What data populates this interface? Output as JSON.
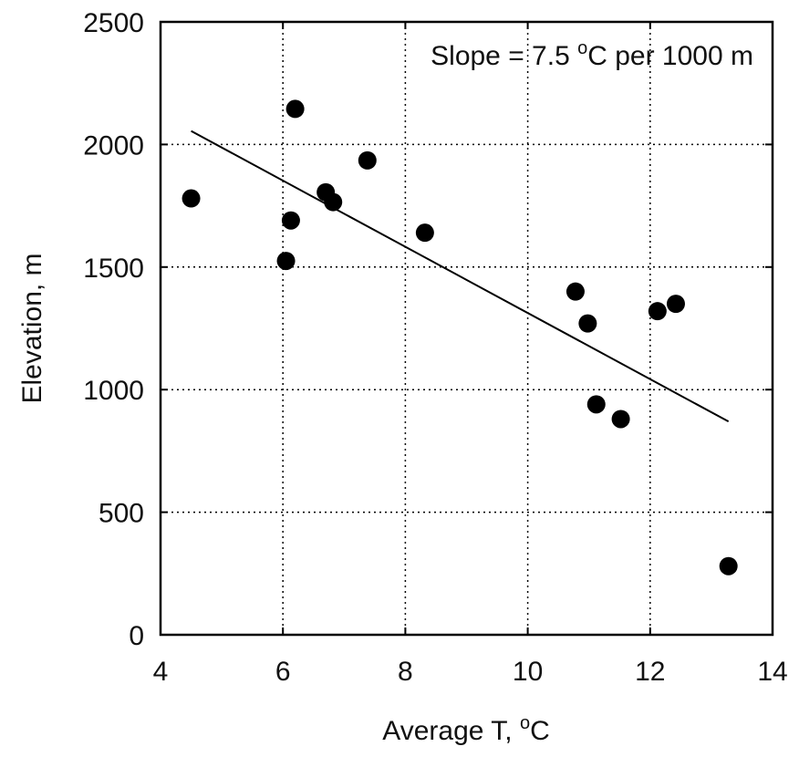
{
  "chart_data": {
    "type": "scatter",
    "title": "",
    "xlabel_main": "Average T, ",
    "xlabel_sup": "o",
    "xlabel_unit": "C",
    "ylabel": "Elevation, m",
    "xlim": [
      4,
      14
    ],
    "ylim": [
      0,
      2500
    ],
    "x_ticks": [
      4,
      6,
      8,
      10,
      12,
      14
    ],
    "y_ticks": [
      0,
      500,
      1000,
      1500,
      2000,
      2500
    ],
    "x_tick_labels": [
      "4",
      "6",
      "8",
      "10",
      "12",
      "14"
    ],
    "y_tick_labels": [
      "0",
      "500",
      "1000",
      "1500",
      "2000",
      "2500"
    ],
    "grid": true,
    "points": [
      {
        "x": 4.5,
        "y": 1780
      },
      {
        "x": 6.05,
        "y": 1525
      },
      {
        "x": 6.13,
        "y": 1690
      },
      {
        "x": 6.2,
        "y": 2145
      },
      {
        "x": 6.7,
        "y": 1805
      },
      {
        "x": 6.82,
        "y": 1765
      },
      {
        "x": 7.38,
        "y": 1935
      },
      {
        "x": 8.32,
        "y": 1640
      },
      {
        "x": 10.78,
        "y": 1400
      },
      {
        "x": 10.98,
        "y": 1270
      },
      {
        "x": 11.12,
        "y": 940
      },
      {
        "x": 11.52,
        "y": 880
      },
      {
        "x": 12.12,
        "y": 1320
      },
      {
        "x": 12.42,
        "y": 1350
      },
      {
        "x": 13.28,
        "y": 280
      }
    ],
    "fit_line": {
      "x": [
        4.5,
        13.28
      ],
      "y": [
        2055,
        870
      ]
    },
    "annotation": {
      "prefix": "Slope = 7.5 ",
      "sup": "o",
      "suffix": "C per 1000 m"
    },
    "colors": {
      "points": "#000000",
      "line": "#000000",
      "background": "#ffffff"
    }
  }
}
